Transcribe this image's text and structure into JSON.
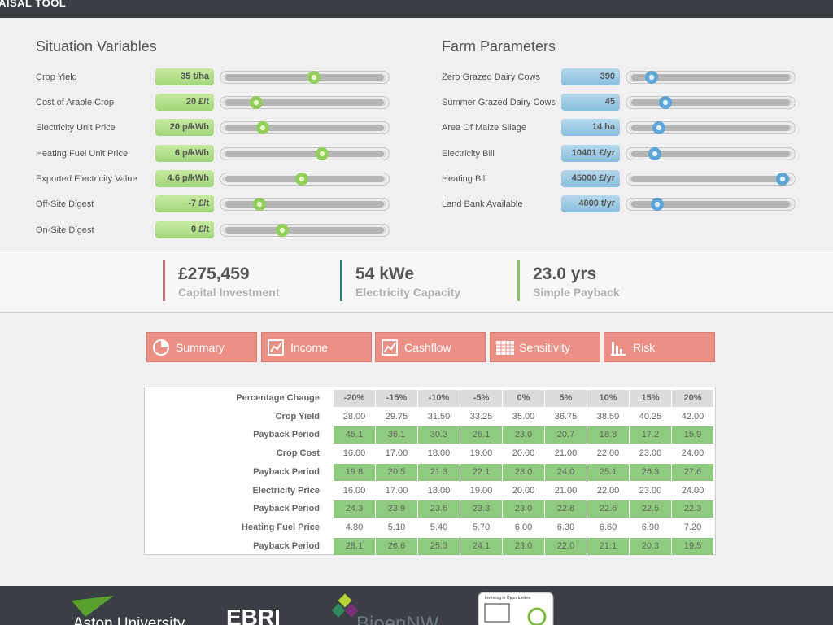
{
  "header": {
    "title": "AISAL TOOL"
  },
  "situation": {
    "title": "Situation Variables",
    "rows": [
      {
        "label": "Crop Yield",
        "value": "35 t/ha"
      },
      {
        "label": "Cost of Arable Crop",
        "value": "20 £/t"
      },
      {
        "label": "Electricity Unit Price",
        "value": "20 p/kWh"
      },
      {
        "label": "Heating Fuel Unit Price",
        "value": "6 p/kWh"
      },
      {
        "label": "Exported Electricity Value",
        "value": "4.6 p/kWh"
      },
      {
        "label": "Off-Site Digest",
        "value": "-7 £/t"
      },
      {
        "label": "On-Site Digest",
        "value": "0 £/t"
      }
    ]
  },
  "farm": {
    "title": "Farm Parameters",
    "rows": [
      {
        "label": "Zero Grazed Dairy Cows",
        "value": "390"
      },
      {
        "label": "Summer Grazed Dairy Cows",
        "value": "45"
      },
      {
        "label": "Area Of Maize Silage",
        "value": "14 ha"
      },
      {
        "label": "Electricity Bill",
        "value": "10401 £/yr"
      },
      {
        "label": "Heating Bill",
        "value": "45000 £/yr"
      },
      {
        "label": "Land Bank Available",
        "value": "4000 t/yr"
      }
    ]
  },
  "metrics": [
    {
      "value": "£275,459",
      "label": "Capital Investment"
    },
    {
      "value": "54 kWe",
      "label": "Electricity Capacity"
    },
    {
      "value": "23.0 yrs",
      "label": "Simple Payback"
    }
  ],
  "tabs": [
    "Summary",
    "Income",
    "Cashflow",
    "Sensitivity",
    "Risk"
  ],
  "table": {
    "header": [
      "Percentage Change",
      "-20%",
      "-15%",
      "-10%",
      "-5%",
      "0%",
      "5%",
      "10%",
      "15%",
      "20%"
    ],
    "rows": [
      [
        "Crop Yield",
        "28.00",
        "29.75",
        "31.50",
        "33.25",
        "35.00",
        "36.75",
        "38.50",
        "40.25",
        "42.00"
      ],
      [
        "Payback Period",
        "45.1",
        "36.1",
        "30.3",
        "26.1",
        "23.0",
        "20.7",
        "18.8",
        "17.2",
        "15.9"
      ],
      [
        "Crop Cost",
        "16.00",
        "17.00",
        "18.00",
        "19.00",
        "20.00",
        "21.00",
        "22.00",
        "23.00",
        "24.00"
      ],
      [
        "Payback Period",
        "19.8",
        "20.5",
        "21.3",
        "22.1",
        "23.0",
        "24.0",
        "25.1",
        "26.3",
        "27.6"
      ],
      [
        "Electricity Price",
        "16.00",
        "17.00",
        "18.00",
        "19.00",
        "20.00",
        "21.00",
        "22.00",
        "23.00",
        "24.00"
      ],
      [
        "Payback Period",
        "24.3",
        "23.9",
        "23.6",
        "23.3",
        "23.0",
        "22.8",
        "22.6",
        "22.5",
        "22.3"
      ],
      [
        "Heating Fuel Price",
        "4.80",
        "5.10",
        "5.40",
        "5.70",
        "6.00",
        "6.30",
        "6.60",
        "6.90",
        "7.20"
      ],
      [
        "Payback Period",
        "28.1",
        "26.6",
        "25.3",
        "24.1",
        "23.0",
        "22.0",
        "21.1",
        "20.3",
        "19.5"
      ]
    ]
  },
  "footer": {
    "logos": [
      "Aston University",
      "EBRI",
      "BioenNW",
      "Investing in Opportunities"
    ]
  }
}
